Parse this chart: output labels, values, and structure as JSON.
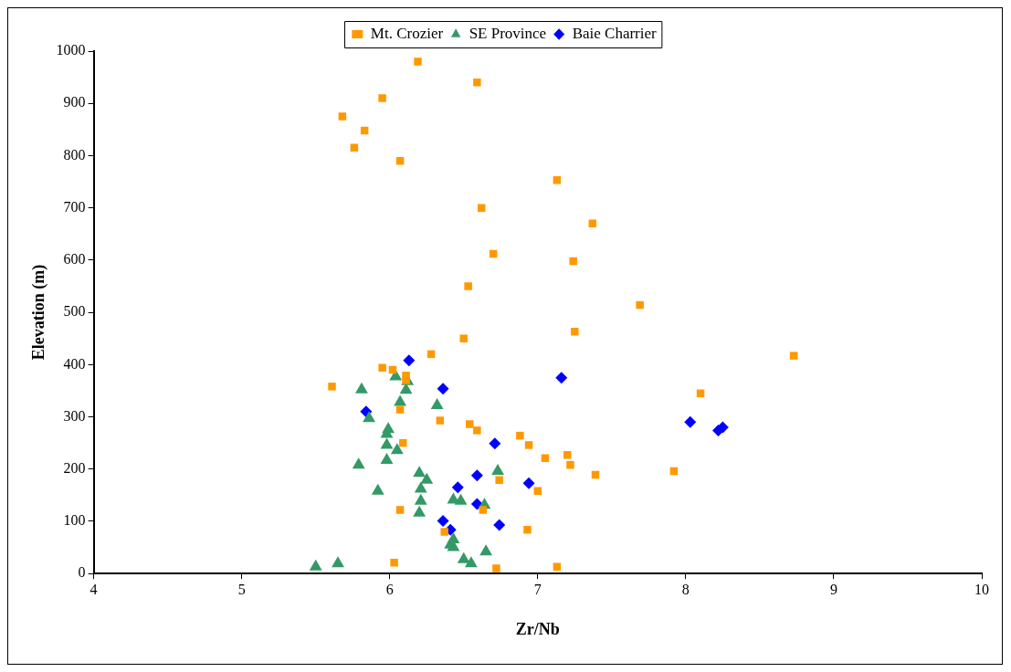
{
  "chart_data": {
    "type": "scatter",
    "xlabel": "Zr/Nb",
    "ylabel": "Elevation (m)",
    "xlim": [
      4,
      10
    ],
    "xticks": [
      4,
      5,
      6,
      7,
      8,
      9,
      10
    ],
    "ylim": [
      0,
      1000
    ],
    "yticks": [
      0,
      100,
      200,
      300,
      400,
      500,
      600,
      700,
      800,
      900,
      1000
    ],
    "grid": false,
    "legend": "top",
    "series": [
      {
        "name": "Mt. Crozier",
        "color": "#ff9900",
        "marker": "square",
        "x": [
          6.19,
          6.59,
          5.95,
          5.68,
          5.83,
          5.76,
          6.07,
          7.13,
          6.62,
          7.37,
          6.7,
          7.24,
          6.53,
          7.69,
          7.25,
          6.5,
          6.28,
          8.73,
          8.1,
          7.92,
          7.39,
          7.22,
          7.2,
          7.05,
          6.88,
          6.94,
          7.0,
          6.93,
          7.13,
          5.61,
          5.95,
          6.02,
          6.11,
          6.11,
          6.07,
          6.34,
          6.54,
          6.59,
          6.09,
          6.74,
          6.07,
          6.63,
          6.37,
          6.03,
          6.72
        ],
        "values": [
          980,
          940,
          910,
          875,
          848,
          815,
          790,
          753,
          700,
          670,
          612,
          598,
          550,
          514,
          463,
          450,
          420,
          417,
          345,
          196,
          189,
          208,
          227,
          221,
          264,
          246,
          158,
          84,
          13,
          358,
          394,
          390,
          379,
          370,
          314,
          293,
          286,
          274,
          250,
          179,
          122,
          122,
          80,
          21,
          10
        ]
      },
      {
        "name": "SE Province",
        "color": "#339966",
        "marker": "triangle",
        "x": [
          5.81,
          6.04,
          6.12,
          6.11,
          6.07,
          6.32,
          5.86,
          5.99,
          5.98,
          5.98,
          6.05,
          5.98,
          5.79,
          6.2,
          6.25,
          6.21,
          5.92,
          6.21,
          6.2,
          6.43,
          6.48,
          6.73,
          6.64,
          6.43,
          6.41,
          6.43,
          6.5,
          6.55,
          6.65,
          5.5,
          5.65
        ],
        "values": [
          352,
          377,
          368,
          351,
          328,
          322,
          297,
          276,
          267,
          246,
          236,
          217,
          208,
          192,
          179,
          162,
          158,
          139,
          116,
          141,
          139,
          196,
          131,
          65,
          55,
          50,
          27,
          19,
          42,
          13,
          19
        ]
      },
      {
        "name": "Baie Charrier",
        "color": "#0000ff",
        "marker": "diamond",
        "x": [
          6.13,
          6.36,
          7.16,
          5.84,
          6.71,
          6.59,
          6.46,
          6.94,
          6.59,
          6.36,
          6.41,
          6.74,
          8.03,
          8.22,
          8.25
        ],
        "values": [
          408,
          354,
          375,
          310,
          249,
          188,
          165,
          173,
          133,
          101,
          84,
          93,
          290,
          274,
          280
        ]
      }
    ]
  }
}
